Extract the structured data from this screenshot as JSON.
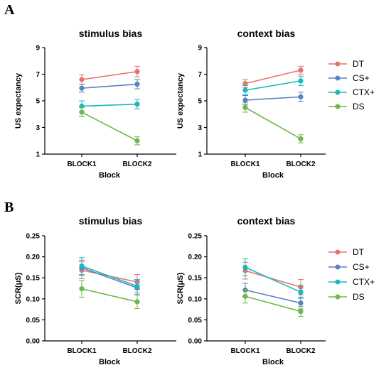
{
  "panels": [
    {
      "letter": "A"
    },
    {
      "letter": "B"
    }
  ],
  "legend": [
    {
      "name": "DT",
      "color": "#E8736C"
    },
    {
      "name": "CS+",
      "color": "#5B82C3"
    },
    {
      "name": "CTX+",
      "color": "#1BB7BE"
    },
    {
      "name": "DS",
      "color": "#6DB84A"
    }
  ],
  "chart_data": [
    {
      "type": "line",
      "title": "stimulus bias",
      "xlabel": "Block",
      "ylabel": "US expectancy",
      "categories": [
        "BLOCK1",
        "BLOCK2"
      ],
      "ylim": [
        1,
        9
      ],
      "yticks": [
        "1",
        "3",
        "5",
        "7",
        "9"
      ],
      "series": [
        {
          "name": "DT",
          "values": [
            6.6,
            7.2
          ],
          "errors": [
            0.35,
            0.4
          ]
        },
        {
          "name": "CS+",
          "values": [
            5.95,
            6.25
          ],
          "errors": [
            0.3,
            0.35
          ]
        },
        {
          "name": "CTX+",
          "values": [
            4.6,
            4.75
          ],
          "errors": [
            0.4,
            0.35
          ]
        },
        {
          "name": "DS",
          "values": [
            4.15,
            2.0
          ],
          "errors": [
            0.35,
            0.3
          ]
        }
      ]
    },
    {
      "type": "line",
      "title": "context bias",
      "xlabel": "Block",
      "ylabel": "US expectancy",
      "categories": [
        "BLOCK1",
        "BLOCK2"
      ],
      "ylim": [
        1,
        9
      ],
      "yticks": [
        "1",
        "3",
        "5",
        "7",
        "9"
      ],
      "series": [
        {
          "name": "DT",
          "values": [
            6.3,
            7.3
          ],
          "errors": [
            0.3,
            0.3
          ]
        },
        {
          "name": "CS+",
          "values": [
            5.05,
            5.3
          ],
          "errors": [
            0.35,
            0.35
          ]
        },
        {
          "name": "CTX+",
          "values": [
            5.8,
            6.5
          ],
          "errors": [
            0.35,
            0.35
          ]
        },
        {
          "name": "DS",
          "values": [
            4.5,
            2.15
          ],
          "errors": [
            0.35,
            0.3
          ]
        }
      ]
    },
    {
      "type": "line",
      "title": "stimulus bias",
      "xlabel": "Block",
      "ylabel": "SCR(μS)",
      "categories": [
        "BLOCK1",
        "BLOCK2"
      ],
      "ylim": [
        0,
        0.25
      ],
      "yticks": [
        "0.00",
        "0.05",
        "0.10",
        "0.15",
        "0.20",
        "0.25"
      ],
      "series": [
        {
          "name": "DT",
          "values": [
            0.168,
            0.14
          ],
          "errors": [
            0.02,
            0.018
          ]
        },
        {
          "name": "CS+",
          "values": [
            0.174,
            0.126
          ],
          "errors": [
            0.018,
            0.016
          ]
        },
        {
          "name": "CTX+",
          "values": [
            0.178,
            0.13
          ],
          "errors": [
            0.02,
            0.016
          ]
        },
        {
          "name": "DS",
          "values": [
            0.124,
            0.093
          ],
          "errors": [
            0.02,
            0.016
          ]
        }
      ]
    },
    {
      "type": "line",
      "title": "context bias",
      "xlabel": "Block",
      "ylabel": "SCR(μS)",
      "categories": [
        "BLOCK1",
        "BLOCK2"
      ],
      "ylim": [
        0,
        0.25
      ],
      "yticks": [
        "0.00",
        "0.05",
        "0.10",
        "0.15",
        "0.20",
        "0.25"
      ],
      "series": [
        {
          "name": "DT",
          "values": [
            0.167,
            0.128
          ],
          "errors": [
            0.02,
            0.018
          ]
        },
        {
          "name": "CS+",
          "values": [
            0.121,
            0.09
          ],
          "errors": [
            0.016,
            0.014
          ]
        },
        {
          "name": "CTX+",
          "values": [
            0.175,
            0.116
          ],
          "errors": [
            0.02,
            0.015
          ]
        },
        {
          "name": "DS",
          "values": [
            0.106,
            0.07
          ],
          "errors": [
            0.016,
            0.012
          ]
        }
      ]
    }
  ]
}
